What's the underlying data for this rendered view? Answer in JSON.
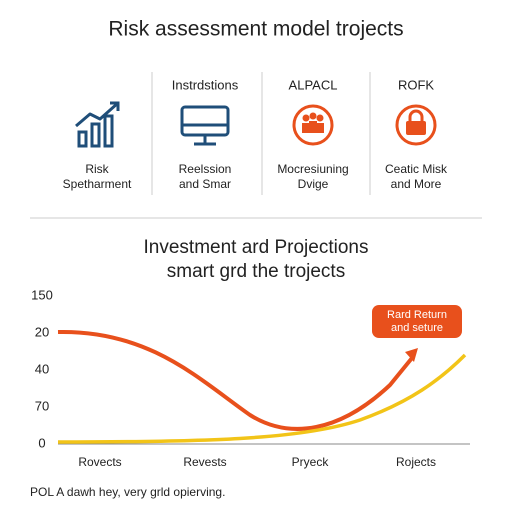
{
  "header": {
    "title": "Risk assessment model trojects"
  },
  "features": [
    {
      "heading": null,
      "lines": [
        "Risk",
        "Spetharment"
      ]
    },
    {
      "heading": "Instrdstions",
      "lines": [
        "Reelssion",
        "and Smar"
      ]
    },
    {
      "heading": "ALPACL",
      "lines": [
        "Mocresiuning",
        "Dvige"
      ]
    },
    {
      "heading": "ROFK",
      "lines": [
        "Ceatic Misk",
        "and More"
      ]
    }
  ],
  "chart": {
    "title_lines": [
      "Investment ard Projections",
      "smart grd the trojects"
    ],
    "y_labels": [
      "150",
      "20",
      "40",
      "70",
      "0"
    ],
    "x_labels": [
      "Rovects",
      "Revests",
      "Pryeck",
      "Rojects"
    ],
    "callout_lines": [
      "Rard Return",
      "and seture"
    ]
  },
  "footnote": "POL A dawh hey, very grld opierving."
}
